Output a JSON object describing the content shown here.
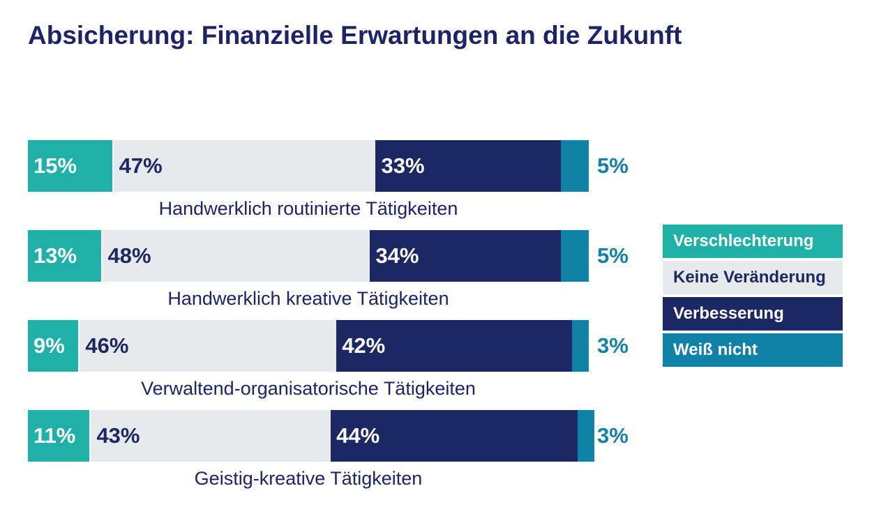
{
  "colors": {
    "title": "#1d2466",
    "verschlechterung": "#1fb1a8",
    "keine": "#e7eaec",
    "verbesserung": "#1c2862",
    "weiss_nicht": "#1081a7"
  },
  "chart_data": {
    "type": "bar",
    "orientation": "horizontal-stacked-100",
    "title": "Absicherung: Finanzielle Erwartungen an die Zukunft",
    "xlabel": "",
    "ylabel": "",
    "xlim": [
      0,
      100
    ],
    "grid": false,
    "legend_position": "right",
    "categories": [
      "Handwerklich routinierte Tätigkeiten",
      "Handwerklich kreative Tätigkeiten",
      "Verwaltend-organisatorische Tätigkeiten",
      "Geistig-kreative Tätigkeiten"
    ],
    "series": [
      {
        "name": "Verschlechterung",
        "values": [
          15,
          13,
          9,
          11
        ],
        "labels": [
          "15%",
          "13%",
          "9%",
          "11%"
        ],
        "color": "#1fb1a8",
        "text_color": "#ffffff"
      },
      {
        "name": "Keine Veränderung",
        "values": [
          47,
          48,
          46,
          43
        ],
        "labels": [
          "47%",
          "48%",
          "46%",
          "43%"
        ],
        "color": "#e7eaec",
        "text_color": "#1c2862"
      },
      {
        "name": "Verbesserung",
        "values": [
          33,
          34,
          42,
          44
        ],
        "labels": [
          "33%",
          "34%",
          "42%",
          "44%"
        ],
        "color": "#1c2862",
        "text_color": "#ffffff"
      },
      {
        "name": "Weiß nicht",
        "values": [
          5,
          5,
          3,
          3
        ],
        "labels": [
          "5%",
          "5%",
          "3%",
          "3%"
        ],
        "color": "#1081a7",
        "text_color": "#1381a8"
      }
    ]
  }
}
